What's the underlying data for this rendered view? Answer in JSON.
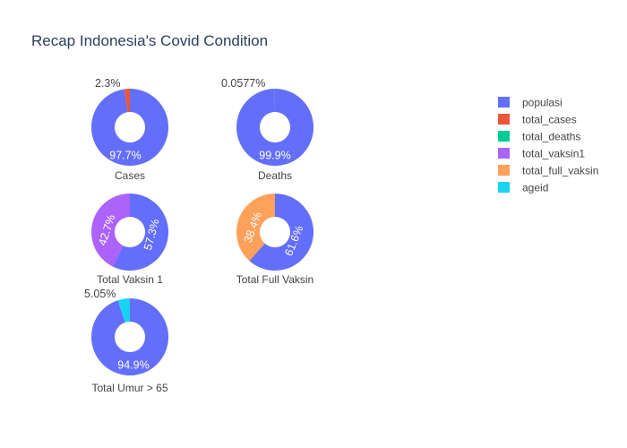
{
  "chart_data": {
    "type": "pie",
    "title": "Recap Indonesia's Covid Condition",
    "legend_position": "top-right",
    "legend": [
      {
        "name": "populasi",
        "color": "#636efa"
      },
      {
        "name": "total_cases",
        "color": "#ef553b"
      },
      {
        "name": "total_deaths",
        "color": "#00cc96"
      },
      {
        "name": "total_vaksin1",
        "color": "#ab63fa"
      },
      {
        "name": "total_full_vaksin",
        "color": "#ffa15a"
      },
      {
        "name": "ageid",
        "color": "#19d3f3"
      }
    ],
    "pies": [
      {
        "label": "Cases",
        "slices": [
          {
            "name": "populasi",
            "percent": 97.7,
            "text": "97.7%"
          },
          {
            "name": "total_cases",
            "percent": 2.3,
            "text": "2.3%"
          }
        ]
      },
      {
        "label": "Deaths",
        "slices": [
          {
            "name": "populasi",
            "percent": 99.9,
            "text": "99.9%"
          },
          {
            "name": "total_deaths",
            "percent": 0.0577,
            "text": "0.0577%"
          }
        ]
      },
      {
        "label": "Total Vaksin 1",
        "slices": [
          {
            "name": "populasi",
            "percent": 57.3,
            "text": "57.3%"
          },
          {
            "name": "total_vaksin1",
            "percent": 42.7,
            "text": "42.7%"
          }
        ]
      },
      {
        "label": "Total Full Vaksin",
        "slices": [
          {
            "name": "populasi",
            "percent": 61.6,
            "text": "61.6%"
          },
          {
            "name": "total_full_vaksin",
            "percent": 38.4,
            "text": "38.4%"
          }
        ]
      },
      {
        "label": "Total Umur > 65",
        "slices": [
          {
            "name": "populasi",
            "percent": 94.9,
            "text": "94.9%"
          },
          {
            "name": "ageid",
            "percent": 5.05,
            "text": "5.05%"
          }
        ]
      }
    ]
  }
}
